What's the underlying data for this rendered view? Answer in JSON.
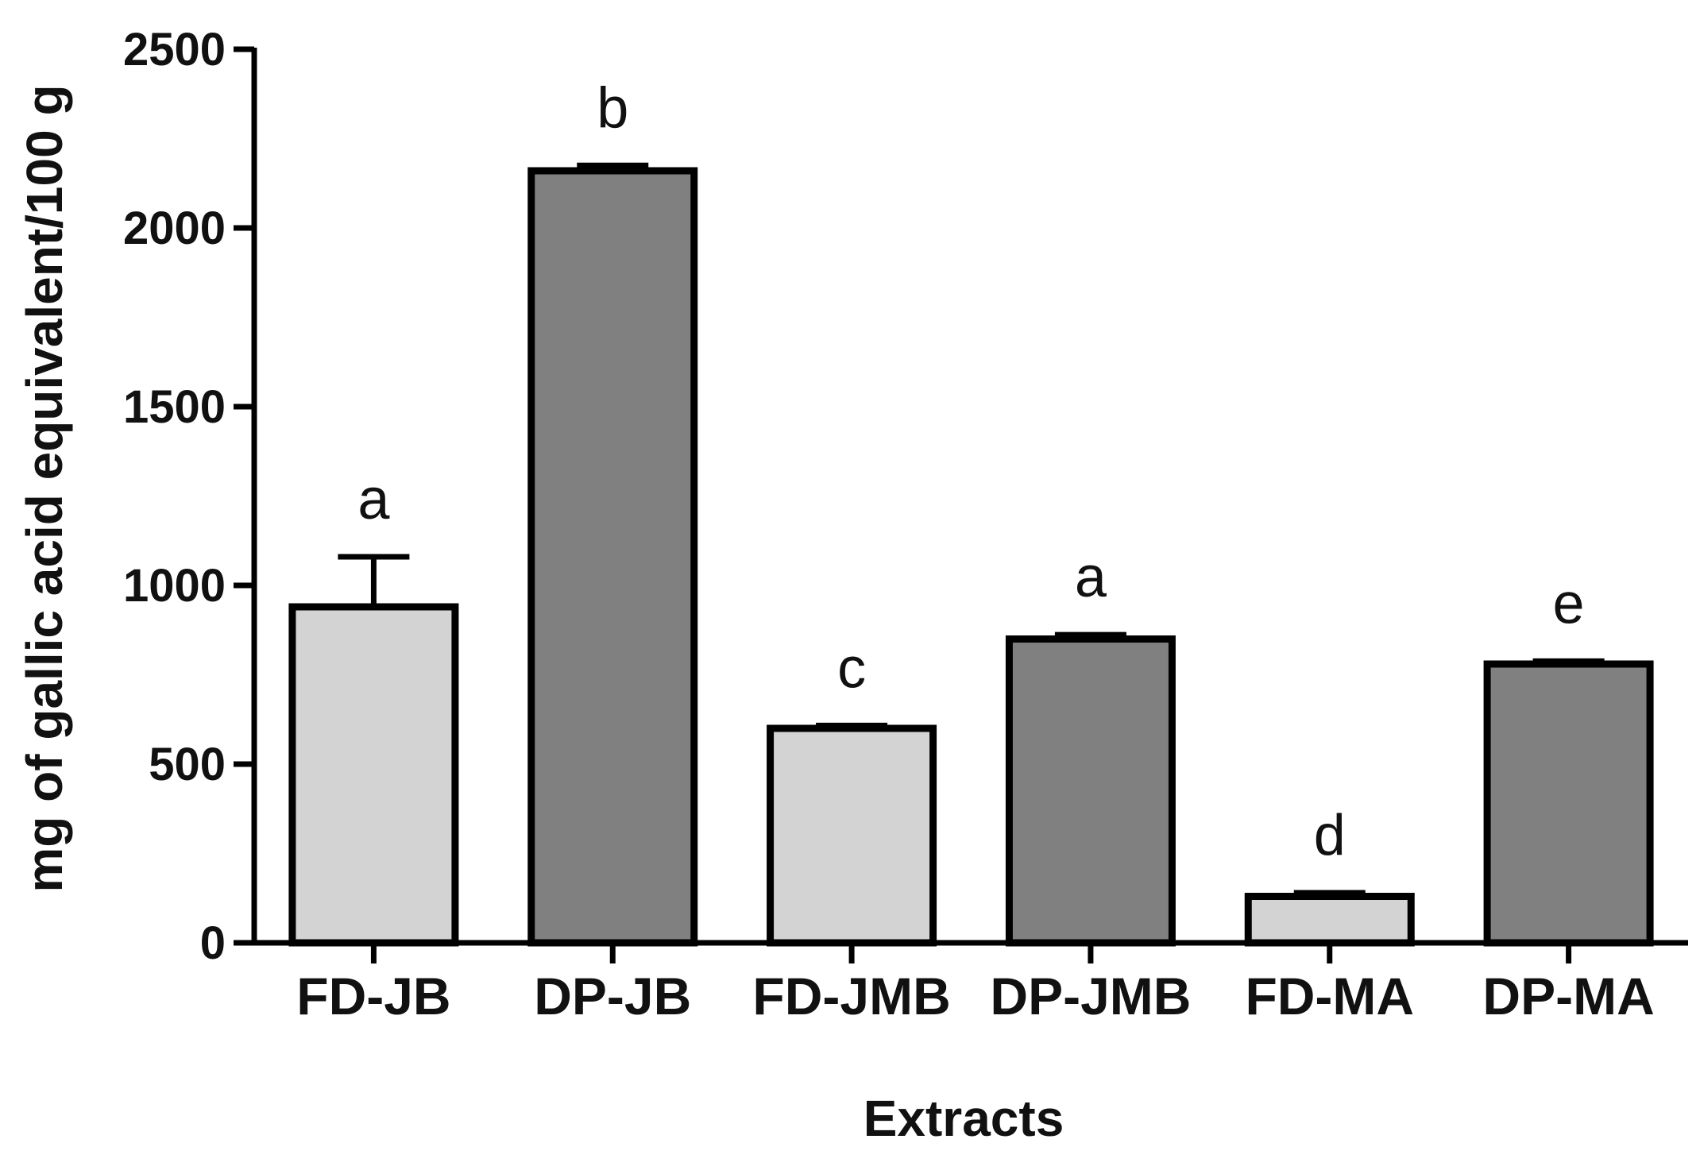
{
  "chart_data": {
    "type": "bar",
    "categories": [
      "FD-JB",
      "DP-JB",
      "FD-JMB",
      "DP-JMB",
      "FD-MA",
      "DP-MA"
    ],
    "values": [
      940,
      2160,
      600,
      850,
      130,
      780
    ],
    "errors": [
      140,
      15,
      8,
      12,
      10,
      8
    ],
    "significance_letters": [
      "a",
      "b",
      "c",
      "a",
      "d",
      "e"
    ],
    "bar_colors": [
      "#d3d3d3",
      "#808080",
      "#d3d3d3",
      "#808080",
      "#d3d3d3",
      "#808080"
    ],
    "xlabel": "Extracts",
    "ylabel": "mg of gallic acid equivalent/100 g",
    "ylim": [
      0,
      2500
    ],
    "yticks": [
      0,
      500,
      1000,
      1500,
      2000,
      2500
    ],
    "ytick_labels": [
      "0",
      "500",
      "1000",
      "1500",
      "2000",
      "2500"
    ],
    "grid": false,
    "legend": "none"
  }
}
